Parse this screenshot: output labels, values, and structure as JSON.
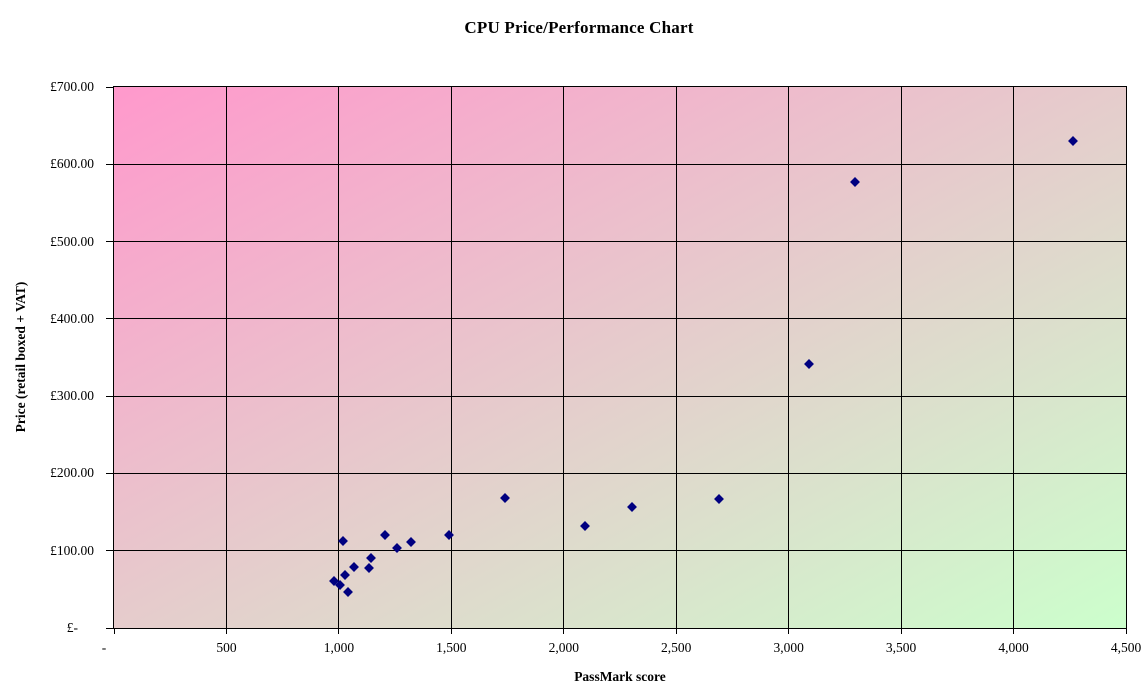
{
  "chart": {
    "title": "CPU Price/Performance Chart",
    "x_axis": {
      "label": "PassMark score",
      "min": 0,
      "max": 4500,
      "ticks": [
        {
          "value": 0,
          "label": "-"
        },
        {
          "value": 500,
          "label": "500"
        },
        {
          "value": 1000,
          "label": "1,000"
        },
        {
          "value": 1500,
          "label": "1,500"
        },
        {
          "value": 2000,
          "label": "2,000"
        },
        {
          "value": 2500,
          "label": "2,500"
        },
        {
          "value": 3000,
          "label": "3,000"
        },
        {
          "value": 3500,
          "label": "3,500"
        },
        {
          "value": 4000,
          "label": "4,000"
        },
        {
          "value": 4500,
          "label": "4,500"
        }
      ]
    },
    "y_axis": {
      "label": "Price (retail boxed + VAT)",
      "min": 0,
      "max": 700,
      "ticks": [
        {
          "value": 0,
          "label": "£-"
        },
        {
          "value": 100,
          "label": "£100.00"
        },
        {
          "value": 200,
          "label": "£200.00"
        },
        {
          "value": 300,
          "label": "£300.00"
        },
        {
          "value": 400,
          "label": "£400.00"
        },
        {
          "value": 500,
          "label": "£500.00"
        },
        {
          "value": 600,
          "label": "£600.00"
        },
        {
          "value": 700,
          "label": "£700.00"
        }
      ]
    },
    "colors": {
      "marker": "#000080",
      "plot_gradient_start": "#ff99cc",
      "plot_gradient_end": "#ccffcc",
      "gridline": "#000000",
      "text": "#000000",
      "background": "#ffffff"
    }
  },
  "chart_data": {
    "type": "scatter",
    "title": "CPU Price/Performance Chart",
    "xlabel": "PassMark score",
    "ylabel": "Price (retail boxed + VAT)",
    "xlim": [
      0,
      4500
    ],
    "ylim": [
      0,
      700
    ],
    "grid": true,
    "legend": false,
    "marker": "diamond",
    "points": [
      {
        "passmark": 980,
        "price": 61
      },
      {
        "passmark": 1005,
        "price": 55
      },
      {
        "passmark": 1020,
        "price": 112
      },
      {
        "passmark": 1025,
        "price": 68
      },
      {
        "passmark": 1040,
        "price": 47
      },
      {
        "passmark": 1065,
        "price": 79
      },
      {
        "passmark": 1135,
        "price": 78
      },
      {
        "passmark": 1145,
        "price": 91
      },
      {
        "passmark": 1205,
        "price": 120
      },
      {
        "passmark": 1260,
        "price": 103
      },
      {
        "passmark": 1320,
        "price": 111
      },
      {
        "passmark": 1490,
        "price": 120
      },
      {
        "passmark": 1740,
        "price": 168
      },
      {
        "passmark": 2095,
        "price": 132
      },
      {
        "passmark": 2305,
        "price": 156
      },
      {
        "passmark": 2690,
        "price": 167
      },
      {
        "passmark": 3090,
        "price": 342
      },
      {
        "passmark": 3295,
        "price": 577
      },
      {
        "passmark": 4265,
        "price": 630
      }
    ]
  }
}
